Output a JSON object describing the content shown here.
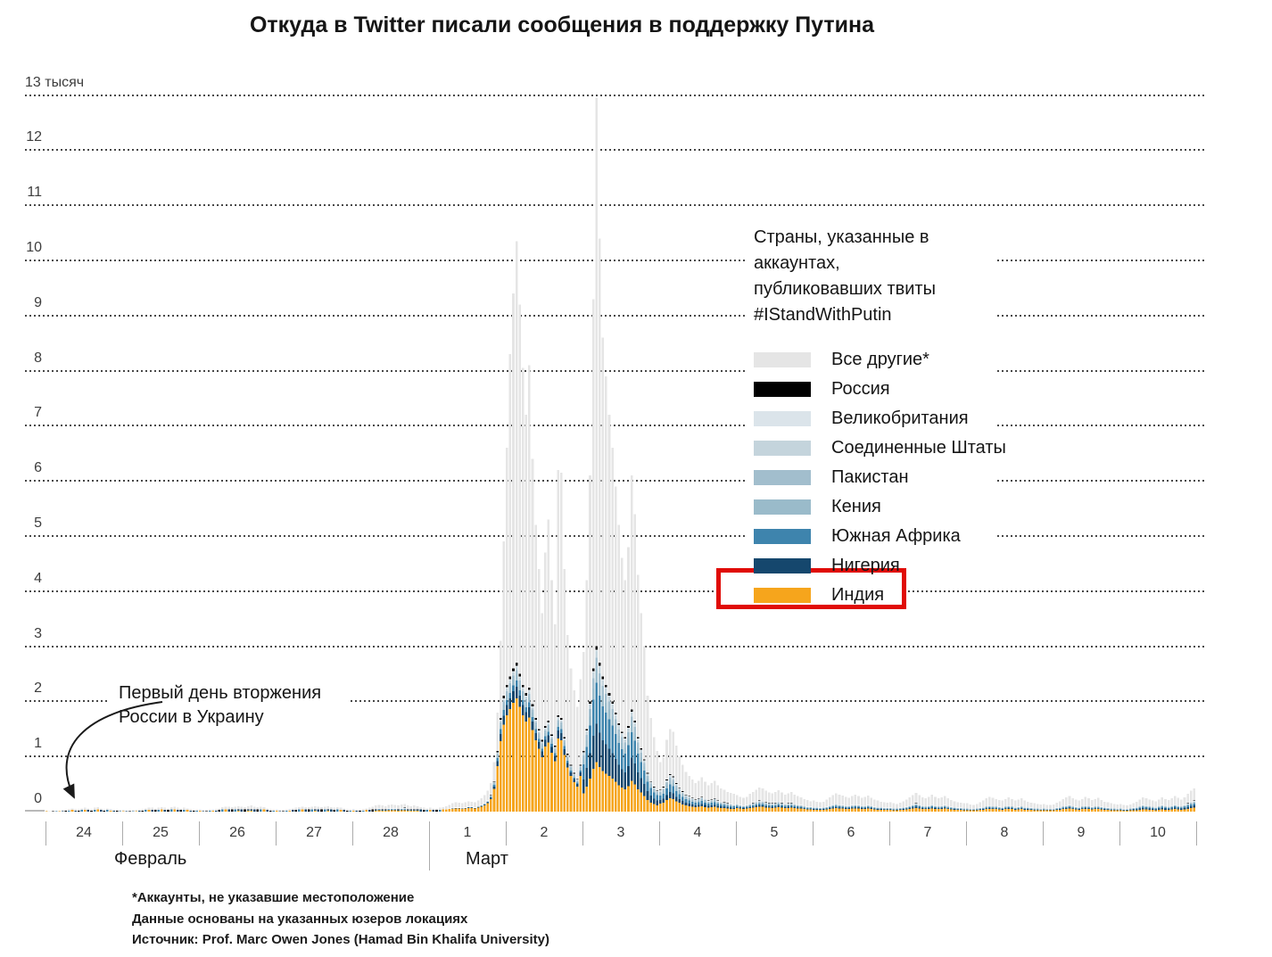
{
  "title": "Откуда в Twitter писали сообщения в поддержку Путина",
  "annotation": {
    "text": "Первый день вторжения\nРоссии в Украину"
  },
  "footnotes": [
    "*Аккаунты, не указавшие местоположение",
    "Данные основаны на указанных юзеров локациях",
    "Источник: Prof. Marc Owen Jones (Hamad Bin Khalifa University)"
  ],
  "legend": {
    "title": "Страны, указанные в\nаккаунтах,\nпубликовавших твиты\n#IStandWithPutin",
    "highlight_color": "#e00b06"
  },
  "chart_data": {
    "type": "bar",
    "stacked": true,
    "time_resolution": "hourly",
    "y_unit": "тысяч твитов",
    "ylim": [
      0,
      13
    ],
    "y_tick_labels": [
      "0",
      "1",
      "2",
      "3",
      "4",
      "5",
      "6",
      "7",
      "8",
      "9",
      "10",
      "11",
      "12",
      "13 тысяч"
    ],
    "x_axis": {
      "months": [
        {
          "label": "Февраль",
          "days": [
            "24",
            "25",
            "26",
            "27",
            "28"
          ]
        },
        {
          "label": "Март",
          "days": [
            "1",
            "2",
            "3",
            "4",
            "5",
            "6",
            "7",
            "8",
            "9",
            "10"
          ]
        }
      ]
    },
    "series": [
      {
        "id": "others",
        "label": "Все другие*",
        "color": "#e5e5e5",
        "highlighted": false
      },
      {
        "id": "russia",
        "label": "Россия",
        "color": "#000000",
        "highlighted": false
      },
      {
        "id": "uk",
        "label": "Великобритания",
        "color": "#dbe4ea",
        "highlighted": false
      },
      {
        "id": "us",
        "label": "Соединенные Штаты",
        "color": "#c4d4dc",
        "highlighted": false
      },
      {
        "id": "pakistan",
        "label": "Пакистан",
        "color": "#a2becd",
        "highlighted": false
      },
      {
        "id": "kenya",
        "label": "Кения",
        "color": "#9abbca",
        "highlighted": false
      },
      {
        "id": "south_africa",
        "label": "Южная Африка",
        "color": "#3e84ad",
        "highlighted": false
      },
      {
        "id": "nigeria",
        "label": "Нигерия",
        "color": "#15476d",
        "highlighted": false
      },
      {
        "id": "india",
        "label": "Индия",
        "color": "#f6a51c",
        "highlighted": true
      }
    ],
    "stack_order": [
      "india",
      "nigeria",
      "south_africa",
      "kenya",
      "pakistan",
      "us",
      "uk",
      "russia"
    ],
    "hourly_totals_thousands": [
      [
        0.02,
        0.01,
        0.01,
        0.02,
        0.02,
        0.03,
        0.04,
        0.05,
        0.06,
        0.05,
        0.05,
        0.06,
        0.07,
        0.06,
        0.05,
        0.07,
        0.08,
        0.06,
        0.05,
        0.06,
        0.05,
        0.04,
        0.04,
        0.03
      ],
      [
        0.03,
        0.02,
        0.02,
        0.03,
        0.03,
        0.04,
        0.05,
        0.06,
        0.07,
        0.07,
        0.06,
        0.07,
        0.08,
        0.07,
        0.06,
        0.08,
        0.09,
        0.07,
        0.06,
        0.07,
        0.06,
        0.05,
        0.04,
        0.04
      ],
      [
        0.04,
        0.03,
        0.03,
        0.04,
        0.04,
        0.05,
        0.06,
        0.08,
        0.09,
        0.09,
        0.08,
        0.09,
        0.1,
        0.09,
        0.08,
        0.1,
        0.11,
        0.09,
        0.08,
        0.09,
        0.08,
        0.06,
        0.05,
        0.04
      ],
      [
        0.04,
        0.03,
        0.03,
        0.04,
        0.05,
        0.06,
        0.07,
        0.08,
        0.09,
        0.08,
        0.08,
        0.09,
        0.1,
        0.09,
        0.08,
        0.09,
        0.1,
        0.08,
        0.07,
        0.08,
        0.07,
        0.06,
        0.05,
        0.04
      ],
      [
        0.05,
        0.04,
        0.04,
        0.05,
        0.06,
        0.07,
        0.09,
        0.11,
        0.12,
        0.11,
        0.1,
        0.12,
        0.13,
        0.12,
        0.11,
        0.13,
        0.14,
        0.11,
        0.1,
        0.11,
        0.1,
        0.08,
        0.07,
        0.06
      ],
      [
        0.07,
        0.06,
        0.06,
        0.07,
        0.08,
        0.1,
        0.12,
        0.15,
        0.17,
        0.16,
        0.15,
        0.17,
        0.19,
        0.18,
        0.17,
        0.2,
        0.24,
        0.3,
        0.38,
        0.52,
        0.9,
        1.8,
        3.1,
        4.9
      ],
      [
        6.6,
        8.3,
        9.4,
        10.35,
        9.2,
        8.05,
        7.2,
        8.1,
        6.4,
        5.2,
        4.4,
        3.6,
        4.7,
        5.3,
        4.2,
        3.4,
        6.2,
        6.15,
        4.4,
        3.2,
        2.6,
        2.2,
        1.9,
        2.4
      ],
      [
        2.9,
        4.2,
        6.1,
        9.3,
        12.95,
        10.4,
        8.6,
        7.9,
        7.2,
        6.6,
        5.9,
        5.2,
        4.6,
        4.2,
        4.8,
        6.1,
        5.4,
        4.3,
        3.6,
        3.0,
        2.1,
        1.7,
        1.35,
        1.1
      ],
      [
        0.9,
        1.0,
        1.3,
        1.5,
        1.45,
        1.2,
        1.0,
        0.85,
        0.72,
        0.65,
        0.58,
        0.52,
        0.56,
        0.62,
        0.54,
        0.48,
        0.52,
        0.56,
        0.48,
        0.42,
        0.4,
        0.36,
        0.34,
        0.32
      ],
      [
        0.3,
        0.27,
        0.25,
        0.27,
        0.32,
        0.36,
        0.4,
        0.44,
        0.42,
        0.38,
        0.35,
        0.33,
        0.36,
        0.39,
        0.35,
        0.31,
        0.33,
        0.36,
        0.31,
        0.28,
        0.26,
        0.23,
        0.21,
        0.19
      ],
      [
        0.2,
        0.18,
        0.17,
        0.18,
        0.22,
        0.26,
        0.3,
        0.33,
        0.31,
        0.29,
        0.27,
        0.25,
        0.28,
        0.31,
        0.28,
        0.25,
        0.27,
        0.29,
        0.25,
        0.22,
        0.2,
        0.18,
        0.17,
        0.16
      ],
      [
        0.17,
        0.15,
        0.14,
        0.16,
        0.19,
        0.22,
        0.26,
        0.3,
        0.34,
        0.3,
        0.26,
        0.24,
        0.27,
        0.31,
        0.27,
        0.24,
        0.26,
        0.28,
        0.24,
        0.21,
        0.19,
        0.17,
        0.16,
        0.15
      ],
      [
        0.15,
        0.13,
        0.12,
        0.14,
        0.17,
        0.2,
        0.24,
        0.27,
        0.25,
        0.23,
        0.21,
        0.2,
        0.23,
        0.26,
        0.23,
        0.2,
        0.22,
        0.24,
        0.2,
        0.18,
        0.16,
        0.15,
        0.14,
        0.13
      ],
      [
        0.14,
        0.12,
        0.12,
        0.13,
        0.16,
        0.19,
        0.23,
        0.26,
        0.28,
        0.24,
        0.22,
        0.2,
        0.23,
        0.27,
        0.24,
        0.21,
        0.23,
        0.25,
        0.21,
        0.18,
        0.17,
        0.15,
        0.14,
        0.13
      ],
      [
        0.14,
        0.12,
        0.11,
        0.13,
        0.15,
        0.18,
        0.22,
        0.26,
        0.24,
        0.22,
        0.2,
        0.19,
        0.22,
        0.26,
        0.23,
        0.21,
        0.24,
        0.28,
        0.25,
        0.22,
        0.26,
        0.32,
        0.38,
        0.42
      ]
    ],
    "hourly_located_thousands": [
      [
        0.01,
        0.0,
        0.01,
        0.01,
        0.01,
        0.01,
        0.02,
        0.02,
        0.03,
        0.02,
        0.02,
        0.03,
        0.03,
        0.03,
        0.02,
        0.03,
        0.04,
        0.03,
        0.02,
        0.03,
        0.02,
        0.02,
        0.02,
        0.01
      ],
      [
        0.01,
        0.01,
        0.01,
        0.01,
        0.01,
        0.02,
        0.02,
        0.03,
        0.03,
        0.03,
        0.03,
        0.03,
        0.04,
        0.03,
        0.03,
        0.04,
        0.04,
        0.03,
        0.03,
        0.03,
        0.03,
        0.02,
        0.02,
        0.02
      ],
      [
        0.02,
        0.01,
        0.01,
        0.02,
        0.02,
        0.02,
        0.03,
        0.04,
        0.04,
        0.04,
        0.04,
        0.04,
        0.05,
        0.04,
        0.04,
        0.05,
        0.05,
        0.04,
        0.04,
        0.04,
        0.04,
        0.03,
        0.02,
        0.02
      ],
      [
        0.02,
        0.01,
        0.01,
        0.02,
        0.02,
        0.03,
        0.03,
        0.04,
        0.04,
        0.04,
        0.04,
        0.04,
        0.05,
        0.04,
        0.04,
        0.04,
        0.05,
        0.04,
        0.03,
        0.04,
        0.03,
        0.03,
        0.02,
        0.02
      ],
      [
        0.02,
        0.02,
        0.02,
        0.02,
        0.03,
        0.03,
        0.04,
        0.05,
        0.06,
        0.05,
        0.05,
        0.06,
        0.06,
        0.06,
        0.05,
        0.06,
        0.07,
        0.05,
        0.05,
        0.05,
        0.05,
        0.04,
        0.03,
        0.03
      ],
      [
        0.03,
        0.03,
        0.03,
        0.03,
        0.04,
        0.05,
        0.06,
        0.07,
        0.08,
        0.08,
        0.07,
        0.08,
        0.09,
        0.09,
        0.08,
        0.1,
        0.12,
        0.15,
        0.2,
        0.3,
        0.55,
        1.1,
        1.7,
        2.1
      ],
      [
        2.3,
        2.45,
        2.6,
        2.7,
        2.5,
        2.3,
        2.15,
        2.25,
        1.95,
        1.7,
        1.5,
        1.3,
        1.55,
        1.65,
        1.4,
        1.2,
        1.75,
        1.7,
        1.35,
        1.05,
        0.85,
        0.7,
        0.6,
        0.85
      ],
      [
        1.1,
        1.5,
        2.0,
        2.6,
        3.0,
        2.7,
        2.45,
        2.3,
        2.15,
        2.0,
        1.8,
        1.6,
        1.45,
        1.35,
        1.55,
        1.85,
        1.65,
        1.35,
        1.15,
        0.95,
        0.7,
        0.55,
        0.45,
        0.38
      ],
      [
        0.4,
        0.45,
        0.58,
        0.68,
        0.64,
        0.52,
        0.44,
        0.37,
        0.31,
        0.28,
        0.25,
        0.22,
        0.24,
        0.27,
        0.23,
        0.2,
        0.22,
        0.24,
        0.2,
        0.18,
        0.17,
        0.15,
        0.14,
        0.13
      ],
      [
        0.14,
        0.12,
        0.11,
        0.12,
        0.14,
        0.16,
        0.18,
        0.2,
        0.19,
        0.17,
        0.16,
        0.15,
        0.16,
        0.18,
        0.16,
        0.14,
        0.15,
        0.16,
        0.14,
        0.13,
        0.12,
        0.1,
        0.09,
        0.09
      ],
      [
        0.08,
        0.08,
        0.07,
        0.08,
        0.09,
        0.11,
        0.13,
        0.14,
        0.13,
        0.12,
        0.11,
        0.11,
        0.12,
        0.13,
        0.12,
        0.11,
        0.11,
        0.12,
        0.11,
        0.09,
        0.08,
        0.08,
        0.07,
        0.07
      ],
      [
        0.07,
        0.06,
        0.06,
        0.07,
        0.08,
        0.09,
        0.11,
        0.13,
        0.15,
        0.13,
        0.11,
        0.1,
        0.11,
        0.13,
        0.11,
        0.1,
        0.11,
        0.12,
        0.1,
        0.09,
        0.08,
        0.07,
        0.07,
        0.06
      ],
      [
        0.06,
        0.05,
        0.05,
        0.06,
        0.07,
        0.08,
        0.1,
        0.11,
        0.1,
        0.1,
        0.09,
        0.08,
        0.1,
        0.11,
        0.1,
        0.08,
        0.09,
        0.1,
        0.08,
        0.08,
        0.07,
        0.06,
        0.06,
        0.05
      ],
      [
        0.06,
        0.05,
        0.05,
        0.05,
        0.07,
        0.08,
        0.1,
        0.11,
        0.12,
        0.1,
        0.09,
        0.08,
        0.1,
        0.11,
        0.1,
        0.09,
        0.1,
        0.1,
        0.09,
        0.08,
        0.07,
        0.06,
        0.06,
        0.05
      ],
      [
        0.06,
        0.05,
        0.05,
        0.06,
        0.07,
        0.08,
        0.1,
        0.12,
        0.11,
        0.1,
        0.09,
        0.08,
        0.1,
        0.12,
        0.1,
        0.09,
        0.11,
        0.13,
        0.11,
        0.1,
        0.12,
        0.15,
        0.18,
        0.2
      ]
    ],
    "composition_by_day": [
      [
        0.38,
        0.12,
        0.1,
        0.06,
        0.08,
        0.08,
        0.04,
        0.14
      ],
      [
        0.38,
        0.12,
        0.1,
        0.06,
        0.08,
        0.08,
        0.04,
        0.14
      ],
      [
        0.38,
        0.12,
        0.1,
        0.06,
        0.08,
        0.08,
        0.04,
        0.14
      ],
      [
        0.38,
        0.12,
        0.1,
        0.06,
        0.08,
        0.08,
        0.04,
        0.14
      ],
      [
        0.4,
        0.12,
        0.1,
        0.06,
        0.08,
        0.08,
        0.04,
        0.12
      ],
      [
        0.75,
        0.08,
        0.05,
        0.04,
        0.03,
        0.02,
        0.01,
        0.02
      ],
      [
        0.76,
        0.08,
        0.04,
        0.04,
        0.03,
        0.02,
        0.01,
        0.02
      ],
      [
        0.3,
        0.23,
        0.25,
        0.08,
        0.07,
        0.04,
        0.01,
        0.02
      ],
      [
        0.36,
        0.16,
        0.2,
        0.1,
        0.08,
        0.05,
        0.02,
        0.03
      ],
      [
        0.45,
        0.13,
        0.15,
        0.08,
        0.08,
        0.05,
        0.03,
        0.03
      ],
      [
        0.45,
        0.13,
        0.15,
        0.08,
        0.08,
        0.05,
        0.03,
        0.03
      ],
      [
        0.45,
        0.13,
        0.15,
        0.08,
        0.08,
        0.05,
        0.03,
        0.03
      ],
      [
        0.45,
        0.13,
        0.15,
        0.08,
        0.08,
        0.05,
        0.03,
        0.03
      ],
      [
        0.45,
        0.13,
        0.15,
        0.08,
        0.08,
        0.05,
        0.03,
        0.03
      ],
      [
        0.35,
        0.2,
        0.18,
        0.09,
        0.08,
        0.05,
        0.02,
        0.03
      ]
    ]
  }
}
